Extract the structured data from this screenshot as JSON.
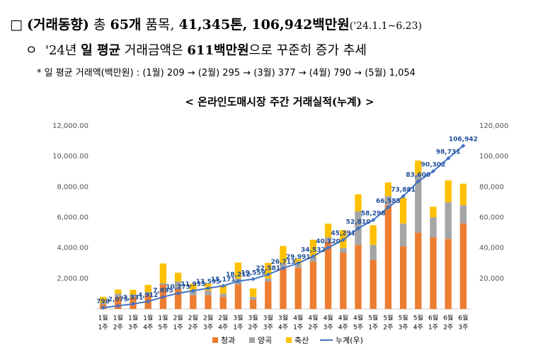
{
  "header": {
    "box": "□",
    "line1": [
      "(거래동향)",
      "총",
      "65개",
      "품목,",
      "41,345톤,",
      "106,942백만원",
      "('24.1.1~6.23)"
    ],
    "bullet": "ㅇ",
    "line2": [
      "'24년",
      "일 평균",
      "거래금액은",
      "611백만원",
      "으로 꾸준히 증가 추세"
    ],
    "note": "* 일 평균 거래액(백만원) : (1월) 209 → (2월) 295 → (3월) 377 → (4월) 790 → (5월) 1,054"
  },
  "chart_data": {
    "type": "bar",
    "title": "< 온라인도매시장 주간 거래실적(누계) >",
    "stacked": true,
    "categories": [
      [
        "1월",
        "1주"
      ],
      [
        "1월",
        "2주"
      ],
      [
        "1월",
        "3주"
      ],
      [
        "1월",
        "4주"
      ],
      [
        "1월",
        "5주"
      ],
      [
        "2월",
        "1주"
      ],
      [
        "2월",
        "2주"
      ],
      [
        "2월",
        "3주"
      ],
      [
        "2월",
        "4주"
      ],
      [
        "3월",
        "1주"
      ],
      [
        "3월",
        "2주"
      ],
      [
        "3월",
        "3주"
      ],
      [
        "3월",
        "4주"
      ],
      [
        "4월",
        "1주"
      ],
      [
        "4월",
        "2주"
      ],
      [
        "4월",
        "3주"
      ],
      [
        "4월",
        "4주"
      ],
      [
        "4월",
        "5주"
      ],
      [
        "5월",
        "1주"
      ],
      [
        "5월",
        "2주"
      ],
      [
        "5월",
        "3주"
      ],
      [
        "5월",
        "4주"
      ],
      [
        "6월",
        "1주"
      ],
      [
        "6월",
        "2주"
      ],
      [
        "6월",
        "3주"
      ]
    ],
    "series": [
      {
        "name": "청과",
        "color": "#ed7d31",
        "values": [
          300,
          800,
          800,
          900,
          1600,
          1300,
          900,
          900,
          800,
          1600,
          600,
          1800,
          2700,
          2700,
          3100,
          4400,
          3700,
          4200,
          3200,
          6800,
          4100,
          5000,
          4700,
          4600,
          5600
        ]
      },
      {
        "name": "양곡",
        "color": "#a5a5a5",
        "values": [
          100,
          200,
          150,
          200,
          100,
          500,
          300,
          300,
          200,
          400,
          200,
          200,
          300,
          200,
          300,
          300,
          300,
          2200,
          1000,
          600,
          1500,
          3800,
          1300,
          2400,
          1200
        ]
      },
      {
        "name": "축산",
        "color": "#ffc000",
        "values": [
          398,
          277,
          306,
          481,
          1283,
          578,
          460,
          462,
          576,
          1041,
          547,
          1022,
          1132,
          378,
          1141,
          888,
          1171,
          1119,
          1288,
          887,
          1696,
          919,
          702,
          1429,
          1411
        ]
      },
      {
        "name": "누계(우)",
        "color": "#4472c4",
        "type": "line",
        "axis": "y2",
        "values": [
          798,
          2075,
          3331,
          4912,
          7895,
          10273,
          11933,
          13595,
          15171,
          18212,
          19559,
          22581,
          26713,
          29991,
          34532,
          40120,
          45291,
          52810,
          58298,
          66585,
          73881,
          83600,
          90302,
          98731,
          106942
        ],
        "value_labels": [
          "798",
          "2,075",
          "3,331",
          "4,912",
          "7,895",
          "10,273",
          "11,933",
          "13,595",
          "15,171",
          "18,212",
          "19,559",
          "22,581",
          "26,713",
          "29,991",
          "34,532",
          "40,120",
          "45,291",
          "52,810",
          "58,298",
          "66,585",
          "73,881",
          "83,600",
          "90,302",
          "98,731",
          "106,942"
        ]
      }
    ],
    "ylim": [
      0,
      12000
    ],
    "yticks": [
      {
        "value": 2000,
        "label": "2,000.00"
      },
      {
        "value": 4000,
        "label": "4,000.00"
      },
      {
        "value": 6000,
        "label": "6,000.00"
      },
      {
        "value": 8000,
        "label": "8,000.00"
      },
      {
        "value": 10000,
        "label": "10,000.00"
      },
      {
        "value": 12000,
        "label": "12,000.00"
      }
    ],
    "y2lim": [
      0,
      120000
    ],
    "y2ticks": [
      {
        "value": 20000,
        "label": "20,000"
      },
      {
        "value": 40000,
        "label": "40,000"
      },
      {
        "value": 60000,
        "label": "60,000"
      },
      {
        "value": 80000,
        "label": "80,000"
      },
      {
        "value": 100000,
        "label": "100,000"
      },
      {
        "value": 120000,
        "label": "120,000"
      }
    ],
    "legend": "bottom",
    "grid": false
  }
}
